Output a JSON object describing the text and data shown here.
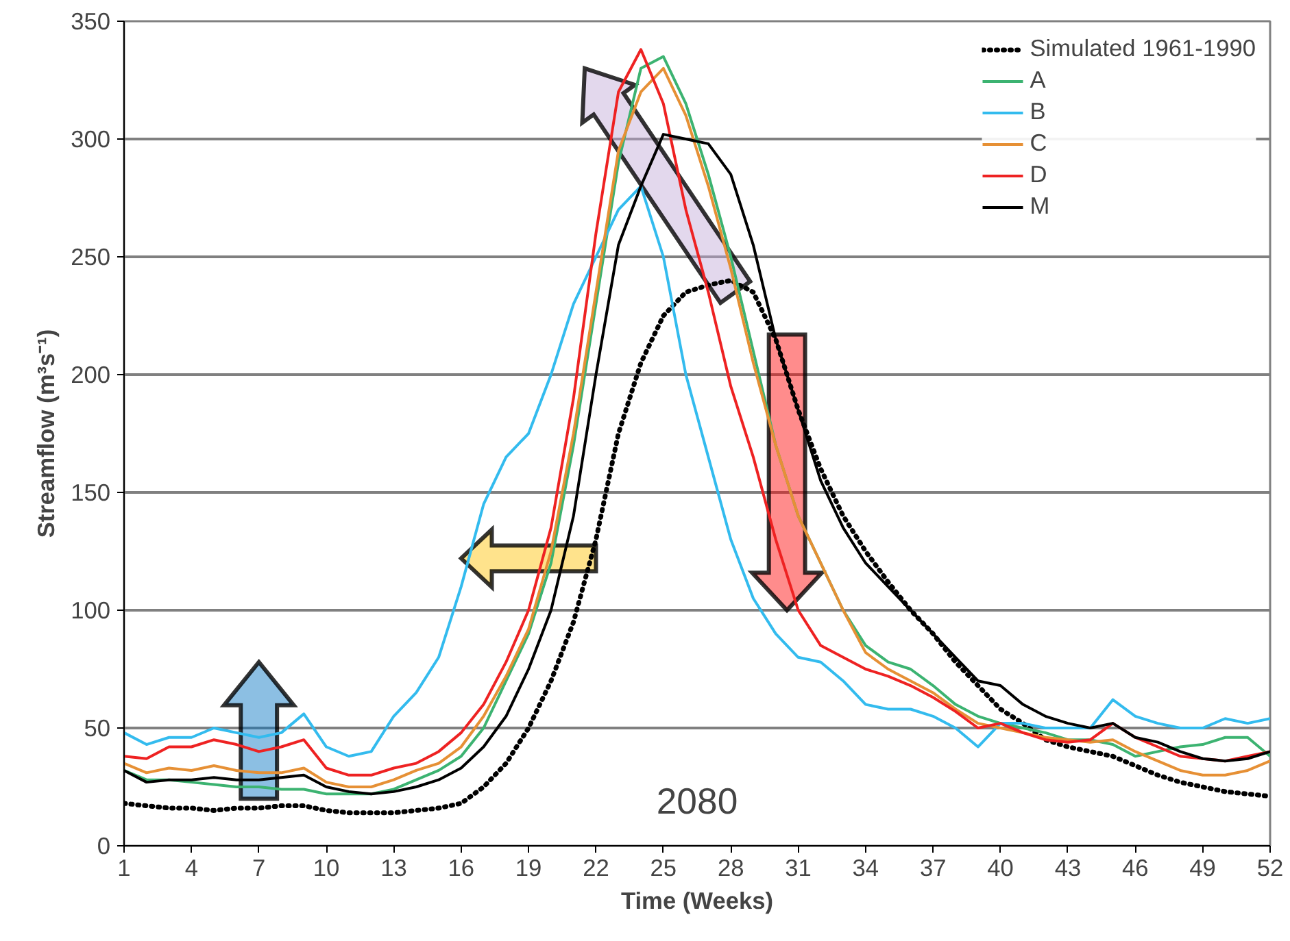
{
  "chart_data": {
    "type": "line",
    "xlabel": "Time (Weeks)",
    "ylabel": "Streamflow (m³s⁻¹)",
    "x": [
      1,
      2,
      3,
      4,
      5,
      6,
      7,
      8,
      9,
      10,
      11,
      12,
      13,
      14,
      15,
      16,
      17,
      18,
      19,
      20,
      21,
      22,
      23,
      24,
      25,
      26,
      27,
      28,
      29,
      30,
      31,
      32,
      33,
      34,
      35,
      36,
      37,
      38,
      39,
      40,
      41,
      42,
      43,
      44,
      45,
      46,
      47,
      48,
      49,
      50,
      51,
      52
    ],
    "xlim": [
      1,
      52
    ],
    "xticks": [
      1,
      4,
      7,
      10,
      13,
      16,
      19,
      22,
      25,
      28,
      31,
      34,
      37,
      40,
      43,
      46,
      49,
      52
    ],
    "ylim": [
      0,
      350
    ],
    "yticks": [
      0,
      50,
      100,
      150,
      200,
      250,
      300,
      350
    ],
    "grid": "y",
    "legend": "top right",
    "marker": "none",
    "annotations": [
      "2080"
    ],
    "series": [
      {
        "name": "Simulated 1961-1990",
        "color": "#000000",
        "line_style": "dotted",
        "values": [
          18,
          17,
          16,
          16,
          15,
          16,
          16,
          17,
          17,
          15,
          14,
          14,
          14,
          15,
          16,
          18,
          25,
          35,
          50,
          70,
          95,
          130,
          175,
          205,
          225,
          235,
          238,
          240,
          235,
          215,
          185,
          160,
          140,
          125,
          112,
          100,
          90,
          78,
          68,
          58,
          52,
          45,
          42,
          40,
          38,
          34,
          30,
          27,
          25,
          23,
          22,
          21
        ]
      },
      {
        "name": "A",
        "color": "#3cb371",
        "values": [
          32,
          28,
          28,
          27,
          26,
          25,
          25,
          24,
          24,
          22,
          22,
          22,
          24,
          28,
          32,
          38,
          50,
          70,
          90,
          120,
          170,
          230,
          290,
          330,
          335,
          315,
          285,
          250,
          210,
          170,
          140,
          120,
          100,
          85,
          78,
          75,
          68,
          60,
          55,
          52,
          50,
          48,
          45,
          45,
          43,
          38,
          40,
          42,
          43,
          46,
          46,
          38
        ]
      },
      {
        "name": "B",
        "color": "#33bbee",
        "values": [
          48,
          43,
          46,
          46,
          50,
          48,
          46,
          48,
          56,
          42,
          38,
          40,
          55,
          65,
          80,
          110,
          145,
          165,
          175,
          200,
          230,
          250,
          270,
          280,
          250,
          200,
          165,
          130,
          105,
          90,
          80,
          78,
          70,
          60,
          58,
          58,
          55,
          50,
          42,
          52,
          52,
          50,
          50,
          50,
          62,
          55,
          52,
          50,
          50,
          54,
          52,
          54
        ]
      },
      {
        "name": "C",
        "color": "#e69035",
        "values": [
          35,
          31,
          33,
          32,
          34,
          32,
          31,
          31,
          33,
          27,
          25,
          25,
          28,
          32,
          35,
          42,
          55,
          72,
          92,
          125,
          175,
          235,
          295,
          320,
          330,
          310,
          280,
          245,
          205,
          170,
          140,
          120,
          100,
          82,
          75,
          70,
          65,
          58,
          52,
          50,
          48,
          46,
          45,
          44,
          45,
          40,
          36,
          32,
          30,
          30,
          32,
          36
        ]
      },
      {
        "name": "D",
        "color": "#ee2222",
        "values": [
          38,
          37,
          42,
          42,
          45,
          43,
          40,
          42,
          45,
          33,
          30,
          30,
          33,
          35,
          40,
          48,
          60,
          78,
          100,
          135,
          190,
          260,
          320,
          338,
          315,
          270,
          235,
          195,
          165,
          130,
          100,
          85,
          80,
          75,
          72,
          68,
          63,
          57,
          50,
          52,
          48,
          45,
          44,
          45,
          52,
          46,
          42,
          38,
          37,
          36,
          38,
          40
        ]
      },
      {
        "name": "M",
        "color": "#000000",
        "line_style": "solid",
        "values": [
          32,
          27,
          28,
          28,
          29,
          28,
          28,
          29,
          30,
          25,
          23,
          22,
          23,
          25,
          28,
          33,
          42,
          55,
          75,
          100,
          140,
          200,
          255,
          280,
          302,
          300,
          298,
          285,
          255,
          215,
          185,
          155,
          135,
          120,
          110,
          100,
          90,
          80,
          70,
          68,
          60,
          55,
          52,
          50,
          52,
          46,
          44,
          40,
          37,
          36,
          37,
          40
        ]
      }
    ]
  }
}
